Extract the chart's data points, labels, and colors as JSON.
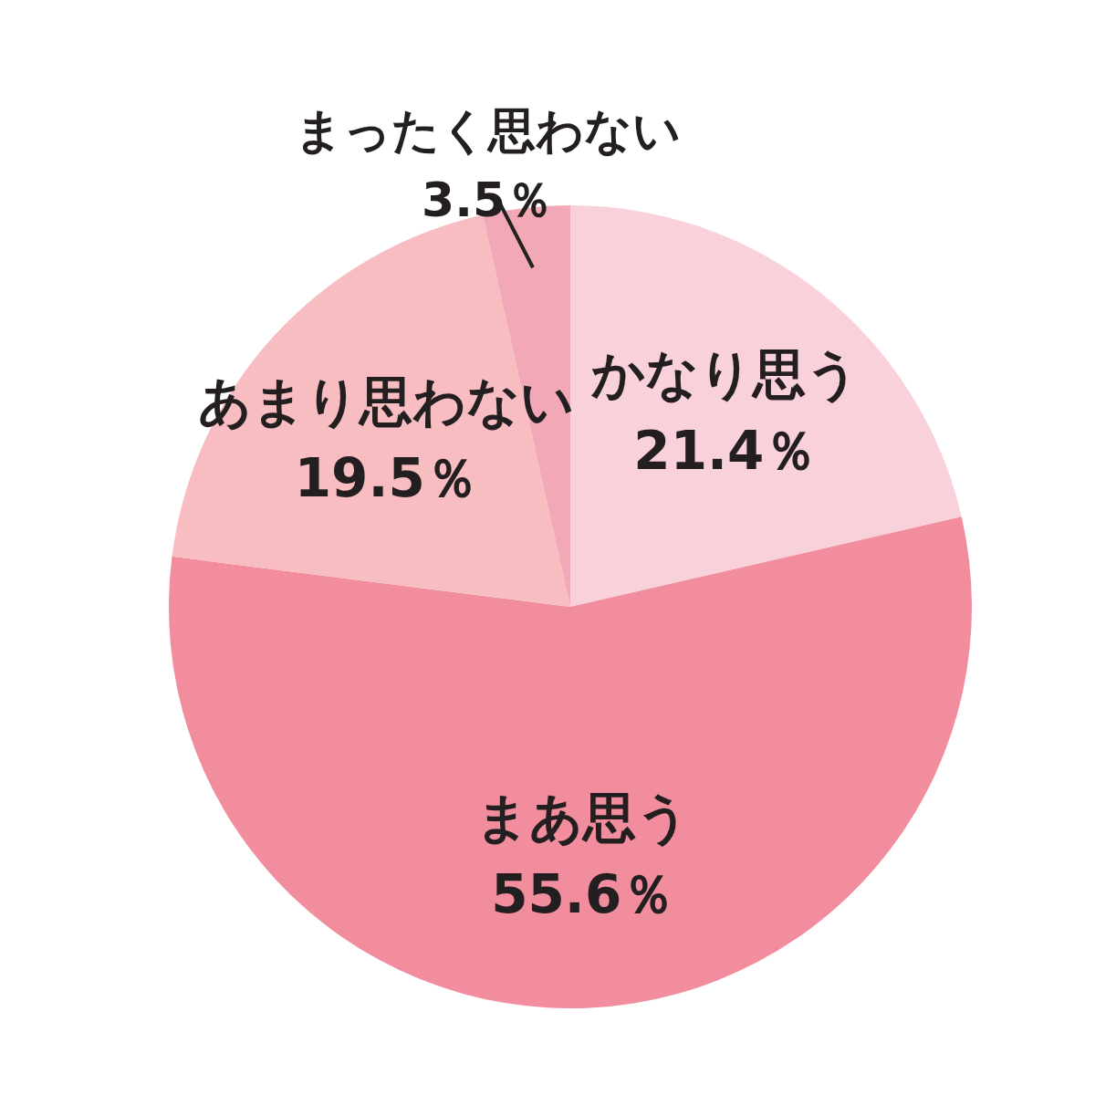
{
  "chart_data": {
    "type": "pie",
    "categories": [
      "かなり思う",
      "まあ思う",
      "あまり思わない",
      "まったく思わない"
    ],
    "values": [
      21.4,
      55.6,
      19.5,
      3.5
    ],
    "colors": [
      "#f9d1da",
      "#f28d9e",
      "#f7bdc0",
      "#f3a8b7"
    ],
    "value_labels": [
      "21.4％",
      "55.6％",
      "19.5％",
      "3.5％"
    ],
    "legend": false
  }
}
